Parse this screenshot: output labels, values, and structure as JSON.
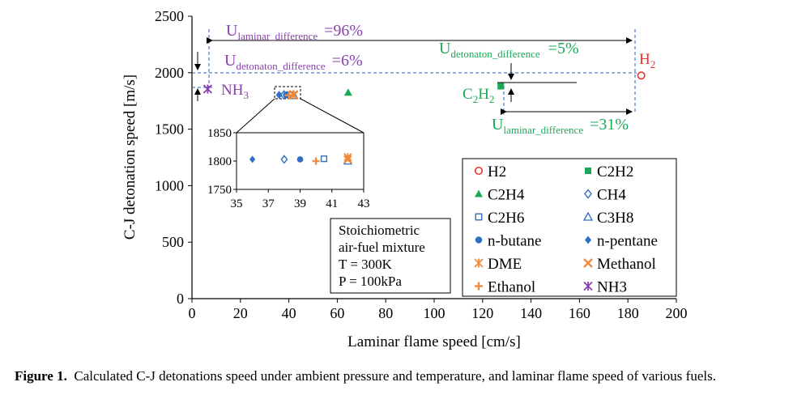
{
  "chart_data": {
    "type": "scatter",
    "title": "",
    "xlabel": "Laminar flame speed [cm/s]",
    "ylabel": "C-J detonation speed [m/s]",
    "xlim": [
      0,
      200
    ],
    "ylim": [
      0,
      2500
    ],
    "xticks": [
      "0",
      "20",
      "40",
      "60",
      "80",
      "100",
      "120",
      "140",
      "160",
      "180",
      "200"
    ],
    "yticks": [
      "0",
      "500",
      "1000",
      "1500",
      "2000",
      "2500"
    ],
    "series": [
      {
        "name": "H2",
        "x": 185.5,
        "y": 1975,
        "marker": "circle-open",
        "color": "#e8312f"
      },
      {
        "name": "C2H2",
        "x": 127.5,
        "y": 1880,
        "marker": "square-filled",
        "color": "#1aaa55"
      },
      {
        "name": "C2H4",
        "x": 64.5,
        "y": 1825,
        "marker": "triangle-filled",
        "color": "#1aaa55"
      },
      {
        "name": "CH4",
        "x": 38,
        "y": 1803,
        "marker": "diamond-open",
        "color": "#2e6fc4"
      },
      {
        "name": "C2H6",
        "x": 40.5,
        "y": 1804,
        "marker": "square-open",
        "color": "#2e6fc4"
      },
      {
        "name": "C3H8",
        "x": 42,
        "y": 1800,
        "marker": "triangle-open",
        "color": "#2e6fc4"
      },
      {
        "name": "n-butane",
        "x": 39,
        "y": 1803,
        "marker": "circle-filled",
        "color": "#2e6fc4"
      },
      {
        "name": "n-pentane",
        "x": 36,
        "y": 1803,
        "marker": "diamond-filled",
        "color": "#2e6fc4"
      },
      {
        "name": "DME",
        "x": 42,
        "y": 1807,
        "marker": "asterisk",
        "color": "#f08a3c"
      },
      {
        "name": "Methanol",
        "x": 42,
        "y": 1803,
        "marker": "x",
        "color": "#f08a3c"
      },
      {
        "name": "Ethanol",
        "x": 40,
        "y": 1800,
        "marker": "plus",
        "color": "#f08a3c"
      },
      {
        "name": "NH3",
        "x": 6.5,
        "y": 1855,
        "marker": "asterisk",
        "color": "#8a3fb0"
      }
    ],
    "inset": {
      "xlim": [
        35,
        43
      ],
      "ylim": [
        1750,
        1850
      ],
      "xticks": [
        "35",
        "37",
        "39",
        "41",
        "43"
      ],
      "yticks": [
        "1750",
        "1800",
        "1850"
      ]
    },
    "annotations": {
      "u_laminar_1": {
        "main": "U",
        "sub": "laminar_difference",
        "value": "=96%"
      },
      "u_detonation_1": {
        "main": "U",
        "sub": "detonaton_difference",
        "value": "=6%"
      },
      "u_detonation_2": {
        "main": "U",
        "sub": "detonaton_difference",
        "value": "=5%"
      },
      "u_laminar_2": {
        "main": "U",
        "sub": "laminar_difference",
        "value": "=31%"
      },
      "h2_label": {
        "main": "H",
        "sub": "2"
      },
      "nh3_label": {
        "main": "NH",
        "sub": "3"
      },
      "c2h2_label": {
        "main": "C",
        "sub1": "2",
        "mid": "H",
        "sub2": "2"
      }
    },
    "conditions": [
      "Stoichiometric",
      "air-fuel mixture",
      "T = 300K",
      "P = 100kPa"
    ],
    "legend_position": "bottom-right"
  },
  "caption": {
    "label": "Figure 1.",
    "text": "Calculated C-J detonations speed under ambient pressure and temperature, and laminar flame speed of various fuels."
  }
}
